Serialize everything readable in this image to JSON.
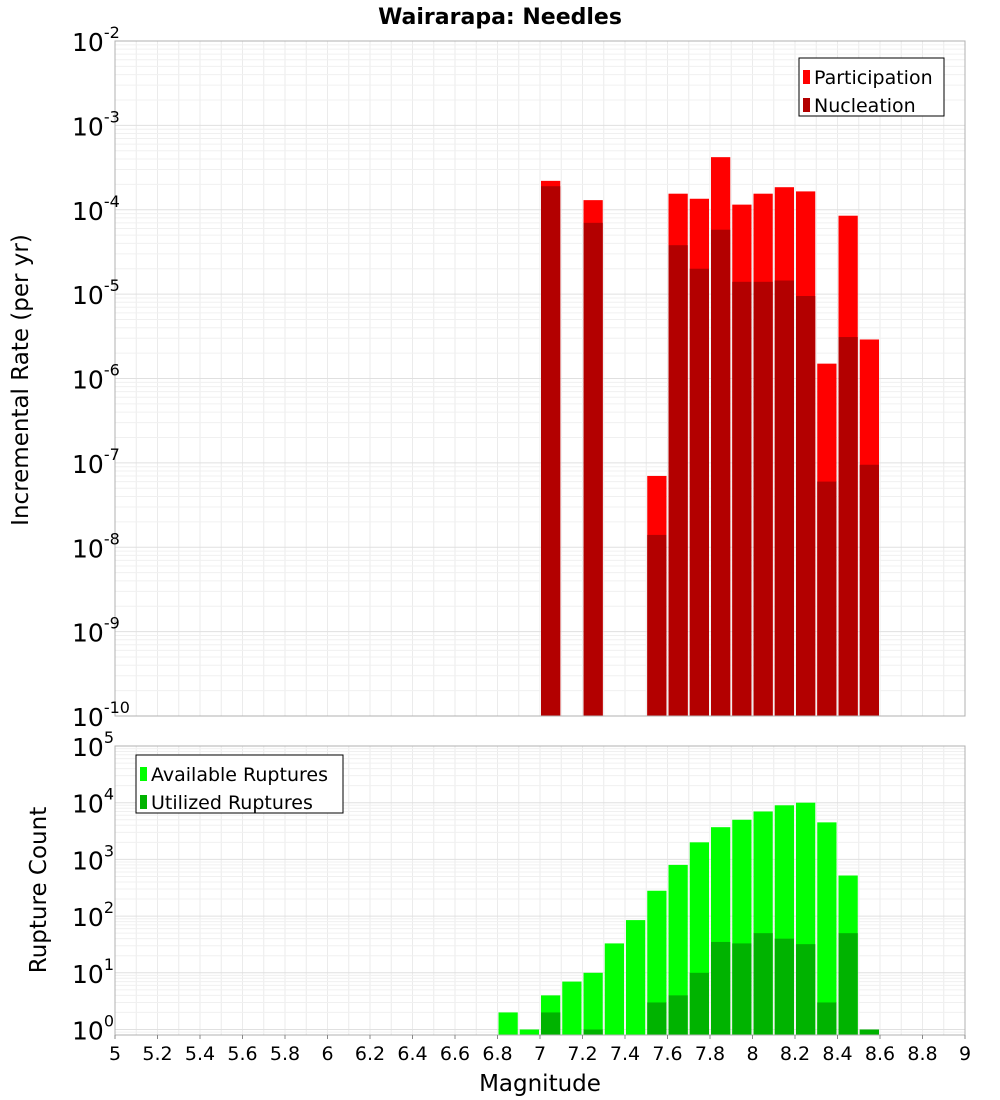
{
  "title": "Wairarapa: Needles",
  "xlabel": "Magnitude",
  "chart_data": [
    {
      "type": "bar",
      "title": "Wairarapa: Needles",
      "xlabel": "",
      "ylabel": "Incremental Rate (per yr)",
      "yscale": "log",
      "xlim": [
        5,
        9
      ],
      "ylim": [
        1e-10,
        0.01
      ],
      "bin_width": 0.1,
      "grid": true,
      "legend": "top-right",
      "colors": {
        "Participation": "#ff0000",
        "Nucleation": "#b30000"
      },
      "series": [
        {
          "name": "Participation",
          "x": [
            7.05,
            7.25,
            7.55,
            7.65,
            7.75,
            7.85,
            7.95,
            8.05,
            8.15,
            8.25,
            8.35,
            8.45,
            8.55
          ],
          "values": [
            0.00022,
            0.00013,
            7e-08,
            0.000155,
            0.000135,
            0.00042,
            0.000115,
            0.000155,
            0.000185,
            0.000165,
            1.5e-06,
            8.5e-05,
            2.9e-06
          ]
        },
        {
          "name": "Nucleation",
          "x": [
            7.05,
            7.25,
            7.55,
            7.65,
            7.75,
            7.85,
            7.95,
            8.05,
            8.15,
            8.25,
            8.35,
            8.45,
            8.55
          ],
          "values": [
            0.00019,
            7e-05,
            1.4e-08,
            3.8e-05,
            2e-05,
            5.8e-05,
            1.4e-05,
            1.4e-05,
            1.45e-05,
            9.5e-06,
            6e-08,
            3.1e-06,
            9.5e-08
          ]
        }
      ]
    },
    {
      "type": "bar",
      "title": "",
      "xlabel": "Magnitude",
      "ylabel": "Rupture Count",
      "yscale": "log",
      "xlim": [
        5,
        9
      ],
      "ylim": [
        0.8,
        100000.0
      ],
      "bin_width": 0.1,
      "grid": true,
      "legend": "top-left",
      "x_ticks": [
        "5",
        "5.2",
        "5.4",
        "5.6",
        "5.8",
        "6",
        "6.2",
        "6.4",
        "6.6",
        "6.8",
        "7",
        "7.2",
        "7.4",
        "7.6",
        "7.8",
        "8",
        "8.2",
        "8.4",
        "8.6",
        "8.8",
        "9"
      ],
      "colors": {
        "Available Ruptures": "#00ff00",
        "Utilized Ruptures": "#00b300"
      },
      "series": [
        {
          "name": "Available Ruptures",
          "x": [
            6.85,
            6.95,
            7.05,
            7.15,
            7.25,
            7.35,
            7.45,
            7.55,
            7.65,
            7.75,
            7.85,
            7.95,
            8.05,
            8.15,
            8.25,
            8.35,
            8.45,
            8.55
          ],
          "values": [
            2,
            1,
            4,
            7,
            10,
            33,
            85,
            280,
            800,
            2000,
            3700,
            5000,
            7000,
            9000,
            10000,
            4500,
            520,
            1
          ]
        },
        {
          "name": "Utilized Ruptures",
          "x": [
            7.05,
            7.25,
            7.55,
            7.65,
            7.75,
            7.85,
            7.95,
            8.05,
            8.15,
            8.25,
            8.35,
            8.45,
            8.55
          ],
          "values": [
            2,
            1,
            3,
            4,
            10,
            35,
            33,
            50,
            40,
            32,
            3,
            50,
            1
          ]
        }
      ]
    }
  ]
}
